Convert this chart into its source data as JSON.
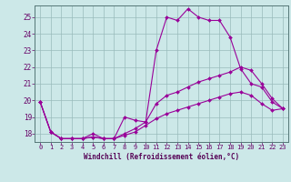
{
  "title": "",
  "xlabel": "Windchill (Refroidissement éolien,°C)",
  "background_color": "#cce8e8",
  "line_color": "#990099",
  "grid_color": "#99bbbb",
  "x_ticks": [
    0,
    1,
    2,
    3,
    4,
    5,
    6,
    7,
    8,
    9,
    10,
    11,
    12,
    13,
    14,
    15,
    16,
    17,
    18,
    19,
    20,
    21,
    22,
    23
  ],
  "ylim": [
    17.5,
    25.7
  ],
  "xlim": [
    -0.5,
    23.5
  ],
  "yticks": [
    18,
    19,
    20,
    21,
    22,
    23,
    24,
    25
  ],
  "series1": [
    19.9,
    18.1,
    17.7,
    17.7,
    17.7,
    18.0,
    17.7,
    17.7,
    19.0,
    18.8,
    18.7,
    23.0,
    25.0,
    24.8,
    25.5,
    25.0,
    24.8,
    24.8,
    23.8,
    21.9,
    21.0,
    20.8,
    19.9,
    19.5
  ],
  "series2": [
    19.9,
    18.1,
    17.7,
    17.7,
    17.7,
    17.8,
    17.7,
    17.7,
    18.0,
    18.3,
    18.7,
    19.8,
    20.3,
    20.5,
    20.8,
    21.1,
    21.3,
    21.5,
    21.7,
    22.0,
    21.8,
    21.0,
    20.1,
    19.5
  ],
  "series3": [
    19.9,
    18.1,
    17.7,
    17.7,
    17.7,
    17.8,
    17.7,
    17.7,
    17.9,
    18.1,
    18.5,
    18.9,
    19.2,
    19.4,
    19.6,
    19.8,
    20.0,
    20.2,
    20.4,
    20.5,
    20.3,
    19.8,
    19.4,
    19.5
  ],
  "tick_fontsize": 5.0,
  "xlabel_fontsize": 5.5,
  "marker_size": 2.0,
  "line_width": 0.8
}
